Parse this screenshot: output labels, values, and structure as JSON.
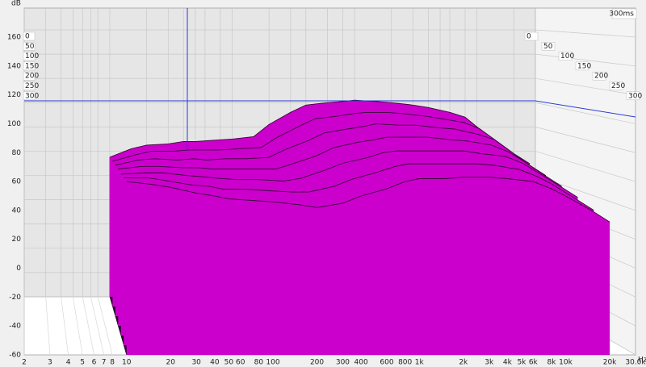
{
  "chart_data": {
    "type": "waterfall",
    "y_label": "dB",
    "x_unit": "Hz",
    "time_label": "300ms",
    "x": [
      10,
      15,
      20,
      30,
      40,
      50,
      70,
      100,
      150,
      200,
      300,
      400,
      600,
      800,
      1000,
      1500,
      2000,
      3000,
      4000,
      6000,
      8000,
      10000,
      15000,
      20000
    ],
    "series": [
      {
        "name": "0",
        "color": "#cc00cc",
        "values": [
          55,
          62,
          65,
          66,
          68,
          68,
          69,
          70,
          72,
          82,
          92,
          98,
          100,
          101,
          102,
          101,
          100,
          98,
          96,
          92,
          88,
          80,
          66,
          58
        ]
      },
      {
        "name": "50",
        "color": "#cc00cc",
        "values": [
          56,
          61,
          64,
          64,
          65,
          65,
          65,
          66,
          67,
          75,
          84,
          90,
          92,
          94,
          95,
          95,
          94,
          92,
          90,
          87,
          82,
          75,
          62,
          54
        ]
      },
      {
        "name": "100",
        "color": "#cc00cc",
        "values": [
          57,
          61,
          62,
          61,
          62,
          61,
          62,
          62,
          63,
          69,
          76,
          82,
          85,
          87,
          89,
          88,
          88,
          86,
          85,
          81,
          77,
          70,
          57,
          49
        ]
      },
      {
        "name": "150",
        "color": "#cc00cc",
        "values": [
          58,
          60,
          60,
          59,
          59,
          58,
          58,
          58,
          58,
          62,
          68,
          74,
          78,
          80,
          82,
          82,
          82,
          80,
          79,
          76,
          71,
          65,
          53,
          45
        ]
      },
      {
        "name": "200",
        "color": "#cc00cc",
        "values": [
          58,
          59,
          59,
          57,
          56,
          55,
          54,
          54,
          53,
          55,
          61,
          66,
          70,
          74,
          75,
          75,
          75,
          75,
          73,
          71,
          66,
          60,
          49,
          41
        ]
      },
      {
        "name": "250",
        "color": "#cc00cc",
        "values": [
          59,
          59,
          57,
          54,
          53,
          51,
          51,
          50,
          49,
          49,
          53,
          58,
          63,
          67,
          69,
          69,
          69,
          69,
          68,
          65,
          60,
          55,
          44,
          36
        ]
      },
      {
        "name": "300",
        "color": "#cc00cc",
        "values": [
          60,
          58,
          56,
          52,
          50,
          48,
          47,
          46,
          44,
          42,
          45,
          50,
          55,
          60,
          62,
          62,
          63,
          63,
          62,
          60,
          55,
          50,
          40,
          32
        ]
      }
    ],
    "xlim": [
      2,
      30000
    ],
    "ylim": [
      -60,
      160
    ],
    "yticks": [
      -60,
      -40,
      -20,
      0,
      20,
      40,
      60,
      80,
      100,
      120,
      140,
      160
    ],
    "xticks": [
      2,
      3,
      4,
      5,
      6,
      7,
      8,
      10,
      20,
      30,
      40,
      50,
      60,
      80,
      100,
      200,
      300,
      400,
      600,
      800,
      {
        "value": 1000,
        "label": "1k"
      },
      {
        "value": 2000,
        "label": "2k"
      },
      {
        "value": 3000,
        "label": "3k"
      },
      {
        "value": 4000,
        "label": "4k"
      },
      {
        "value": 5000,
        "label": "5k"
      },
      {
        "value": 6000,
        "label": "6k"
      },
      {
        "value": 8000,
        "label": "8k"
      },
      {
        "value": 10000,
        "label": "10k"
      },
      {
        "value": 20000,
        "label": "20k"
      },
      {
        "value": 30000,
        "label": "30.0k"
      }
    ],
    "grid": true
  }
}
